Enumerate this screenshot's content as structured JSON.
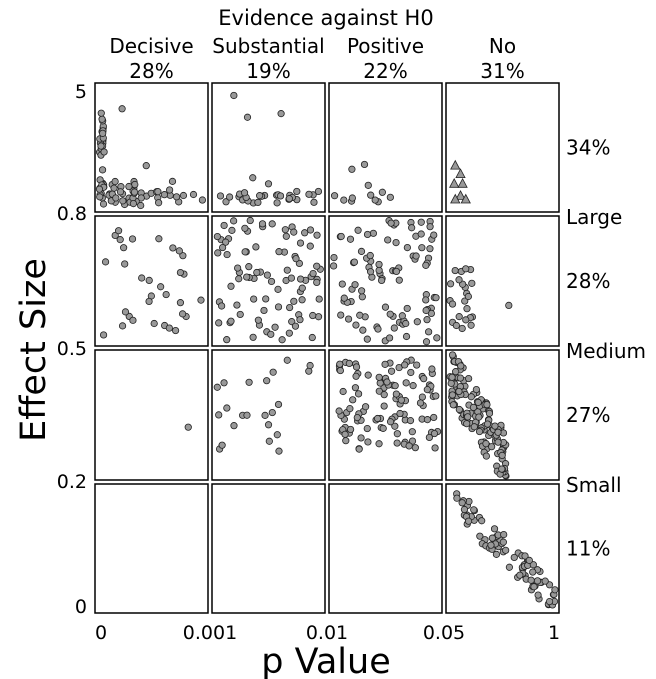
{
  "chart_data": {
    "type": "scatter",
    "title": "Evidence against H0",
    "xlabel": "p Value",
    "ylabel": "Effect Size",
    "x_ticks": [
      "0",
      "0.001",
      "0.01",
      "0.05",
      "1"
    ],
    "y_ticks": [
      "0",
      "0.2",
      "0.5",
      "0.8",
      "5"
    ],
    "columns": [
      {
        "name": "Decisive",
        "pct": "28%",
        "p_range": [
          0,
          0.001
        ]
      },
      {
        "name": "Substantial",
        "pct": "19%",
        "p_range": [
          0.001,
          0.01
        ]
      },
      {
        "name": "Positive",
        "pct": "22%",
        "p_range": [
          0.01,
          0.05
        ]
      },
      {
        "name": "No",
        "pct": "31%",
        "p_range": [
          0.05,
          1
        ]
      }
    ],
    "rows": [
      {
        "pct": "34%",
        "range": [
          0.8,
          5
        ]
      },
      {
        "pct": "28%",
        "range": [
          0.5,
          0.8
        ],
        "boundary_label": "Large"
      },
      {
        "pct": "27%",
        "range": [
          0.2,
          0.5
        ],
        "boundary_label": "Medium"
      },
      {
        "pct": "11%",
        "range": [
          0,
          0.2
        ],
        "boundary_label": "Small"
      }
    ],
    "marker_color": "#999999",
    "marker_edge": "#222222",
    "point_count_note": "values are positions inside each cell in data units"
  }
}
